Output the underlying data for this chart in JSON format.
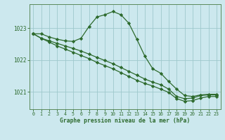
{
  "background_color": "#cce8ee",
  "plot_bg_color": "#cce8ee",
  "grid_color": "#9ec8cc",
  "line_color": "#2d6a2d",
  "marker_color": "#2d6a2d",
  "xlabel": "Graphe pression niveau de la mer (hPa)",
  "xlabel_color": "#2d6a2d",
  "tick_color": "#2d6a2d",
  "spine_color": "#5a8a5a",
  "ytick_labels": [
    1021,
    1022,
    1023
  ],
  "ylim": [
    1020.45,
    1023.75
  ],
  "xlim": [
    -0.5,
    23.5
  ],
  "line1_x": [
    0,
    1,
    2,
    3,
    4,
    5,
    6,
    7,
    8,
    9,
    10,
    11,
    12,
    13,
    14,
    15,
    16,
    17,
    18,
    19,
    20,
    21,
    22,
    23
  ],
  "line1_y": [
    1022.82,
    1022.82,
    1022.72,
    1022.65,
    1022.6,
    1022.58,
    1022.68,
    1023.05,
    1023.35,
    1023.42,
    1023.52,
    1023.42,
    1023.15,
    1022.65,
    1022.12,
    1021.72,
    1021.58,
    1021.32,
    1021.08,
    1020.88,
    1020.85,
    1020.9,
    1020.92,
    1020.92
  ],
  "line2_x": [
    0,
    1,
    2,
    3,
    4,
    5,
    6,
    7,
    8,
    9,
    10,
    11,
    12,
    13,
    14,
    15,
    16,
    17,
    18,
    19,
    20,
    21,
    22,
    23
  ],
  "line2_y": [
    1022.82,
    1022.68,
    1022.6,
    1022.52,
    1022.44,
    1022.36,
    1022.28,
    1022.18,
    1022.08,
    1021.98,
    1021.88,
    1021.76,
    1021.64,
    1021.52,
    1021.4,
    1021.3,
    1021.22,
    1021.08,
    1020.85,
    1020.78,
    1020.8,
    1020.88,
    1020.9,
    1020.9
  ],
  "line3_x": [
    0,
    1,
    2,
    3,
    4,
    5,
    6,
    7,
    8,
    9,
    10,
    11,
    12,
    13,
    14,
    15,
    16,
    17,
    18,
    19,
    20,
    21,
    22,
    23
  ],
  "line3_y": [
    1022.82,
    1022.68,
    1022.56,
    1022.44,
    1022.34,
    1022.24,
    1022.14,
    1022.04,
    1021.92,
    1021.82,
    1021.72,
    1021.6,
    1021.48,
    1021.36,
    1021.26,
    1021.18,
    1021.08,
    1020.98,
    1020.78,
    1020.7,
    1020.72,
    1020.8,
    1020.85,
    1020.85
  ]
}
